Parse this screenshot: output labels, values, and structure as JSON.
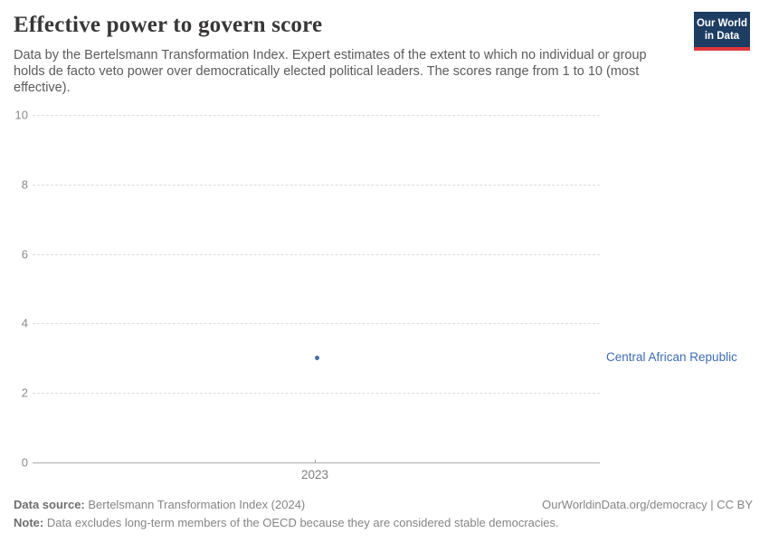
{
  "header": {
    "title": "Effective power to govern score",
    "subtitle": "Data by the Bertelsmann Transformation Index. Expert estimates of the extent to which no individual or group holds de facto veto power over democratically elected political leaders. The scores range from 1 to 10 (most effective).",
    "logo": {
      "line1": "Our World",
      "line2": "in Data",
      "bg_color": "#1d3d63",
      "accent_color": "#e0383e"
    }
  },
  "chart_data": {
    "type": "scatter",
    "title": "Effective power to govern score",
    "series": [
      {
        "name": "Central African Republic",
        "x": [
          2023
        ],
        "y": [
          3
        ]
      }
    ],
    "xticks": [
      2023
    ],
    "x_tick_labels": [
      "2023"
    ],
    "yticks": [
      0,
      2,
      4,
      6,
      8,
      10
    ],
    "ylim": [
      0,
      10
    ],
    "xlabel": "",
    "ylabel": "",
    "grid": "horizontal-dashed",
    "legend_position": "right-of-point",
    "entity_label": "Central African Republic",
    "point_color": "#4a6ea8",
    "entity_label_color": "#3d6cb5"
  },
  "footer": {
    "source_label": "Data source:",
    "source_text": " Bertelsmann Transformation Index (2024)",
    "link_text": "OurWorldinData.org/democracy | CC BY",
    "note_label": "Note:",
    "note_text": " Data excludes long-term members of the OECD because they are considered stable democracies."
  }
}
